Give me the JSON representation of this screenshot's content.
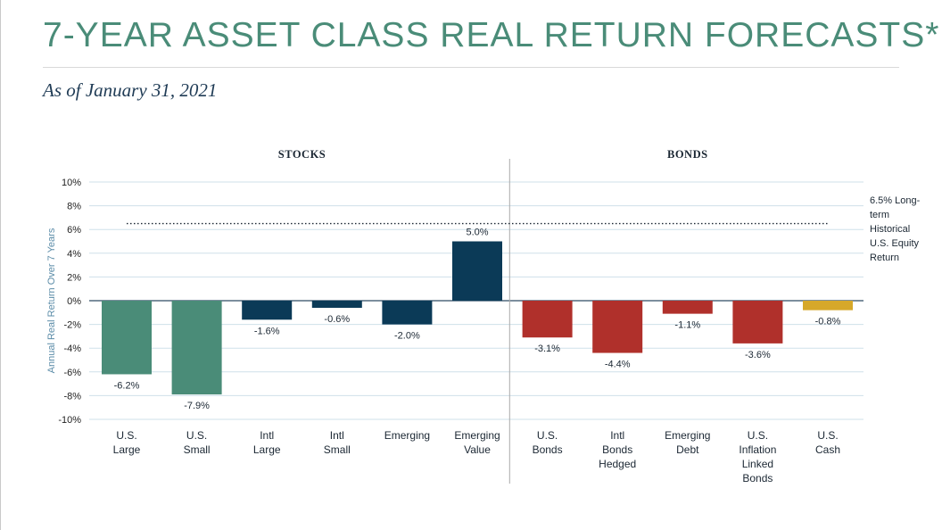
{
  "page": {
    "title": "7-YEAR ASSET CLASS REAL RETURN FORECASTS*",
    "subtitle": "As of January 31, 2021"
  },
  "colors": {
    "title": "#4a8c78",
    "subtitle": "#1f3b55",
    "stocks_us": "#4a8c78",
    "stocks_intl": "#0b3a57",
    "bonds": "#b0302b",
    "cash": "#d6a82a",
    "grid": "#cfe0ea",
    "axis_label": "#5b8ca8"
  },
  "chart_data": {
    "type": "bar",
    "ylabel": "Annual Real Return Over 7 Years",
    "ylim": [
      -10,
      10
    ],
    "yticks": [
      10,
      8,
      6,
      4,
      2,
      0,
      -2,
      -4,
      -6,
      -8,
      -10
    ],
    "ytick_labels": [
      "10%",
      "8%",
      "6%",
      "4%",
      "2%",
      "0%",
      "-2%",
      "-4%",
      "-6%",
      "-8%",
      "-10%"
    ],
    "grid": true,
    "groups": [
      {
        "label": "STOCKS",
        "start": 0,
        "end": 5
      },
      {
        "label": "BONDS",
        "start": 6,
        "end": 10
      }
    ],
    "categories": [
      [
        "U.S.",
        "Large"
      ],
      [
        "U.S.",
        "Small"
      ],
      [
        "Intl",
        "Large"
      ],
      [
        "Intl",
        "Small"
      ],
      [
        "Emerging"
      ],
      [
        "Emerging",
        "Value"
      ],
      [
        "U.S.",
        "Bonds"
      ],
      [
        "Intl",
        "Bonds",
        "Hedged"
      ],
      [
        "Emerging",
        "Debt"
      ],
      [
        "U.S.",
        "Inflation",
        "Linked",
        "Bonds"
      ],
      [
        "U.S.",
        "Cash"
      ]
    ],
    "values": [
      -6.2,
      -7.9,
      -1.6,
      -0.6,
      -2.0,
      5.0,
      -3.1,
      -4.4,
      -1.1,
      -3.6,
      -0.8
    ],
    "value_labels": [
      "-6.2%",
      "-7.9%",
      "-1.6%",
      "-0.6%",
      "-2.0%",
      "5.0%",
      "-3.1%",
      "-4.4%",
      "-1.1%",
      "-3.6%",
      "-0.8%"
    ],
    "bar_colors": [
      "#4a8c78",
      "#4a8c78",
      "#0b3a57",
      "#0b3a57",
      "#0b3a57",
      "#0b3a57",
      "#b0302b",
      "#b0302b",
      "#b0302b",
      "#b0302b",
      "#d6a82a"
    ],
    "reference_line": {
      "value": 6.5,
      "style": "dotted",
      "label": [
        "6.5% Long-",
        "term",
        "Historical",
        "U.S. Equity",
        "Return"
      ]
    }
  }
}
